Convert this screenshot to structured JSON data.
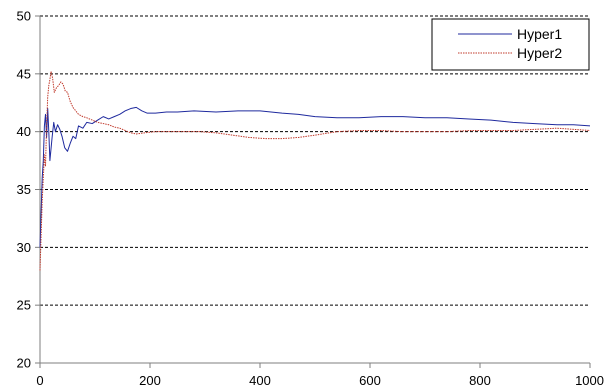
{
  "chart_data": {
    "type": "line",
    "title": "",
    "xlabel": "",
    "ylabel": "",
    "xlim": [
      0,
      1000
    ],
    "ylim": [
      20,
      50
    ],
    "x_ticks": [
      0,
      200,
      400,
      600,
      800,
      1000
    ],
    "y_ticks": [
      20,
      25,
      30,
      35,
      40,
      45,
      50
    ],
    "grid": {
      "horizontal": true,
      "vertical": false,
      "style": "dotted"
    },
    "legend_position": "top-right",
    "series": [
      {
        "name": "Hyper1",
        "color": "#1f2a9e",
        "line_style": "solid",
        "points": [
          [
            0,
            30.0
          ],
          [
            2,
            33.0
          ],
          [
            4,
            36.0
          ],
          [
            6,
            37.5
          ],
          [
            8,
            40.5
          ],
          [
            10,
            41.5
          ],
          [
            12,
            39.5
          ],
          [
            14,
            42.0
          ],
          [
            16,
            40.0
          ],
          [
            18,
            37.5
          ],
          [
            20,
            38.5
          ],
          [
            22,
            39.5
          ],
          [
            25,
            40.8
          ],
          [
            28,
            40.0
          ],
          [
            32,
            40.6
          ],
          [
            36,
            40.2
          ],
          [
            40,
            39.6
          ],
          [
            45,
            38.6
          ],
          [
            50,
            38.3
          ],
          [
            55,
            39.0
          ],
          [
            60,
            39.6
          ],
          [
            65,
            39.4
          ],
          [
            70,
            40.5
          ],
          [
            78,
            40.3
          ],
          [
            85,
            40.8
          ],
          [
            95,
            40.7
          ],
          [
            105,
            41.0
          ],
          [
            115,
            41.3
          ],
          [
            125,
            41.1
          ],
          [
            135,
            41.3
          ],
          [
            145,
            41.5
          ],
          [
            155,
            41.8
          ],
          [
            165,
            42.0
          ],
          [
            175,
            42.1
          ],
          [
            185,
            41.8
          ],
          [
            195,
            41.6
          ],
          [
            210,
            41.6
          ],
          [
            230,
            41.7
          ],
          [
            250,
            41.7
          ],
          [
            280,
            41.8
          ],
          [
            320,
            41.7
          ],
          [
            360,
            41.8
          ],
          [
            400,
            41.8
          ],
          [
            440,
            41.6
          ],
          [
            470,
            41.5
          ],
          [
            500,
            41.3
          ],
          [
            540,
            41.2
          ],
          [
            580,
            41.2
          ],
          [
            620,
            41.3
          ],
          [
            660,
            41.3
          ],
          [
            700,
            41.2
          ],
          [
            740,
            41.2
          ],
          [
            780,
            41.1
          ],
          [
            820,
            41.0
          ],
          [
            860,
            40.8
          ],
          [
            900,
            40.7
          ],
          [
            940,
            40.6
          ],
          [
            970,
            40.6
          ],
          [
            1000,
            40.5
          ]
        ]
      },
      {
        "name": "Hyper2",
        "color": "#c0392b",
        "line_style": "dotted",
        "points": [
          [
            0,
            28.0
          ],
          [
            2,
            31.0
          ],
          [
            4,
            34.0
          ],
          [
            6,
            36.0
          ],
          [
            8,
            38.0
          ],
          [
            10,
            37.0
          ],
          [
            12,
            40.5
          ],
          [
            14,
            43.0
          ],
          [
            16,
            44.0
          ],
          [
            18,
            44.5
          ],
          [
            20,
            45.2
          ],
          [
            23,
            44.6
          ],
          [
            26,
            43.4
          ],
          [
            30,
            43.8
          ],
          [
            34,
            44.0
          ],
          [
            38,
            44.3
          ],
          [
            42,
            44.1
          ],
          [
            46,
            43.5
          ],
          [
            50,
            43.4
          ],
          [
            55,
            42.6
          ],
          [
            60,
            42.1
          ],
          [
            65,
            41.8
          ],
          [
            70,
            41.5
          ],
          [
            78,
            41.3
          ],
          [
            85,
            41.2
          ],
          [
            95,
            41.0
          ],
          [
            105,
            40.8
          ],
          [
            115,
            40.7
          ],
          [
            125,
            40.6
          ],
          [
            135,
            40.4
          ],
          [
            145,
            40.3
          ],
          [
            155,
            40.1
          ],
          [
            165,
            39.9
          ],
          [
            175,
            39.8
          ],
          [
            190,
            39.9
          ],
          [
            210,
            40.0
          ],
          [
            230,
            40.0
          ],
          [
            260,
            40.0
          ],
          [
            290,
            40.0
          ],
          [
            320,
            39.9
          ],
          [
            350,
            39.7
          ],
          [
            380,
            39.5
          ],
          [
            410,
            39.4
          ],
          [
            440,
            39.4
          ],
          [
            470,
            39.5
          ],
          [
            500,
            39.7
          ],
          [
            540,
            40.0
          ],
          [
            580,
            40.1
          ],
          [
            620,
            40.1
          ],
          [
            660,
            40.0
          ],
          [
            700,
            40.0
          ],
          [
            740,
            40.0
          ],
          [
            780,
            40.1
          ],
          [
            820,
            40.1
          ],
          [
            860,
            40.1
          ],
          [
            900,
            40.2
          ],
          [
            940,
            40.3
          ],
          [
            970,
            40.2
          ],
          [
            1000,
            40.1
          ]
        ]
      }
    ],
    "legend": [
      {
        "name": "Hyper1",
        "color": "#1f2a9e",
        "line_style": "solid"
      },
      {
        "name": "Hyper2",
        "color": "#c0392b",
        "line_style": "dotted"
      }
    ]
  }
}
